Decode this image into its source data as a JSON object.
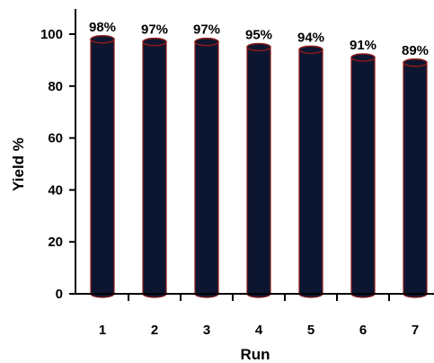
{
  "chart_data": {
    "type": "bar",
    "categories": [
      "1",
      "2",
      "3",
      "4",
      "5",
      "6",
      "7"
    ],
    "values": [
      98,
      97,
      97,
      95,
      94,
      91,
      89
    ],
    "data_labels": [
      "98%",
      "97%",
      "97%",
      "95%",
      "94%",
      "91%",
      "89%"
    ],
    "xlabel": "Run",
    "ylabel": "Yield %",
    "ylim": [
      0,
      100
    ],
    "yticks": [
      "0",
      "20",
      "40",
      "60",
      "80",
      "100"
    ],
    "grid": false,
    "bar_style": "cylinder",
    "colors": {
      "bar_fill": "#0c1630",
      "bar_edge": "#8b1a1a",
      "axis": "#000000"
    }
  }
}
